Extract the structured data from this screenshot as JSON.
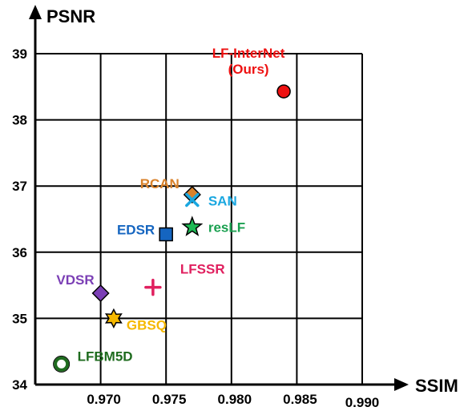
{
  "chart_data": {
    "type": "scatter",
    "title": "",
    "xlabel": "SSIM",
    "ylabel": "PSNR",
    "xlim": [
      0.965,
      0.99
    ],
    "ylim": [
      34,
      39
    ],
    "xticks": [
      "0.970",
      "0.975",
      "0.980",
      "0.985",
      "0.990"
    ],
    "yticks": [
      "34",
      "35",
      "36",
      "37",
      "38",
      "39"
    ],
    "grid": true,
    "legend": "none",
    "points": [
      {
        "name": "LF-InterNet\n(Ours)",
        "x": 0.984,
        "y": 38.43,
        "marker": "circle",
        "color": "#ee1111",
        "label_color": "#ee1111"
      },
      {
        "name": "RCAN",
        "x": 0.977,
        "y": 36.87,
        "marker": "diamond",
        "color": "#d9822b",
        "label_color": "#d9822b"
      },
      {
        "name": "SAN",
        "x": 0.977,
        "y": 36.79,
        "marker": "x",
        "color": "#1aa7e0",
        "label_color": "#1aa7e0"
      },
      {
        "name": "EDSR",
        "x": 0.975,
        "y": 36.27,
        "marker": "square",
        "color": "#1565c0",
        "label_color": "#1565c0"
      },
      {
        "name": "resLF",
        "x": 0.977,
        "y": 36.38,
        "marker": "star5",
        "color": "#1db954",
        "label_color": "#1aa050"
      },
      {
        "name": "LFSSR",
        "x": 0.974,
        "y": 35.47,
        "marker": "plus",
        "color": "#e0205f",
        "label_color": "#e0205f"
      },
      {
        "name": "VDSR",
        "x": 0.97,
        "y": 35.38,
        "marker": "diamond",
        "color": "#7b3fb5",
        "label_color": "#7b3fb5"
      },
      {
        "name": "GBSQ",
        "x": 0.971,
        "y": 35.0,
        "marker": "star6",
        "color": "#f5b800",
        "label_color": "#f5b800"
      },
      {
        "name": "LFBM5D",
        "x": 0.967,
        "y": 34.31,
        "marker": "ring",
        "color": "#1e6b1e",
        "label_color": "#1e6b1e"
      }
    ]
  }
}
